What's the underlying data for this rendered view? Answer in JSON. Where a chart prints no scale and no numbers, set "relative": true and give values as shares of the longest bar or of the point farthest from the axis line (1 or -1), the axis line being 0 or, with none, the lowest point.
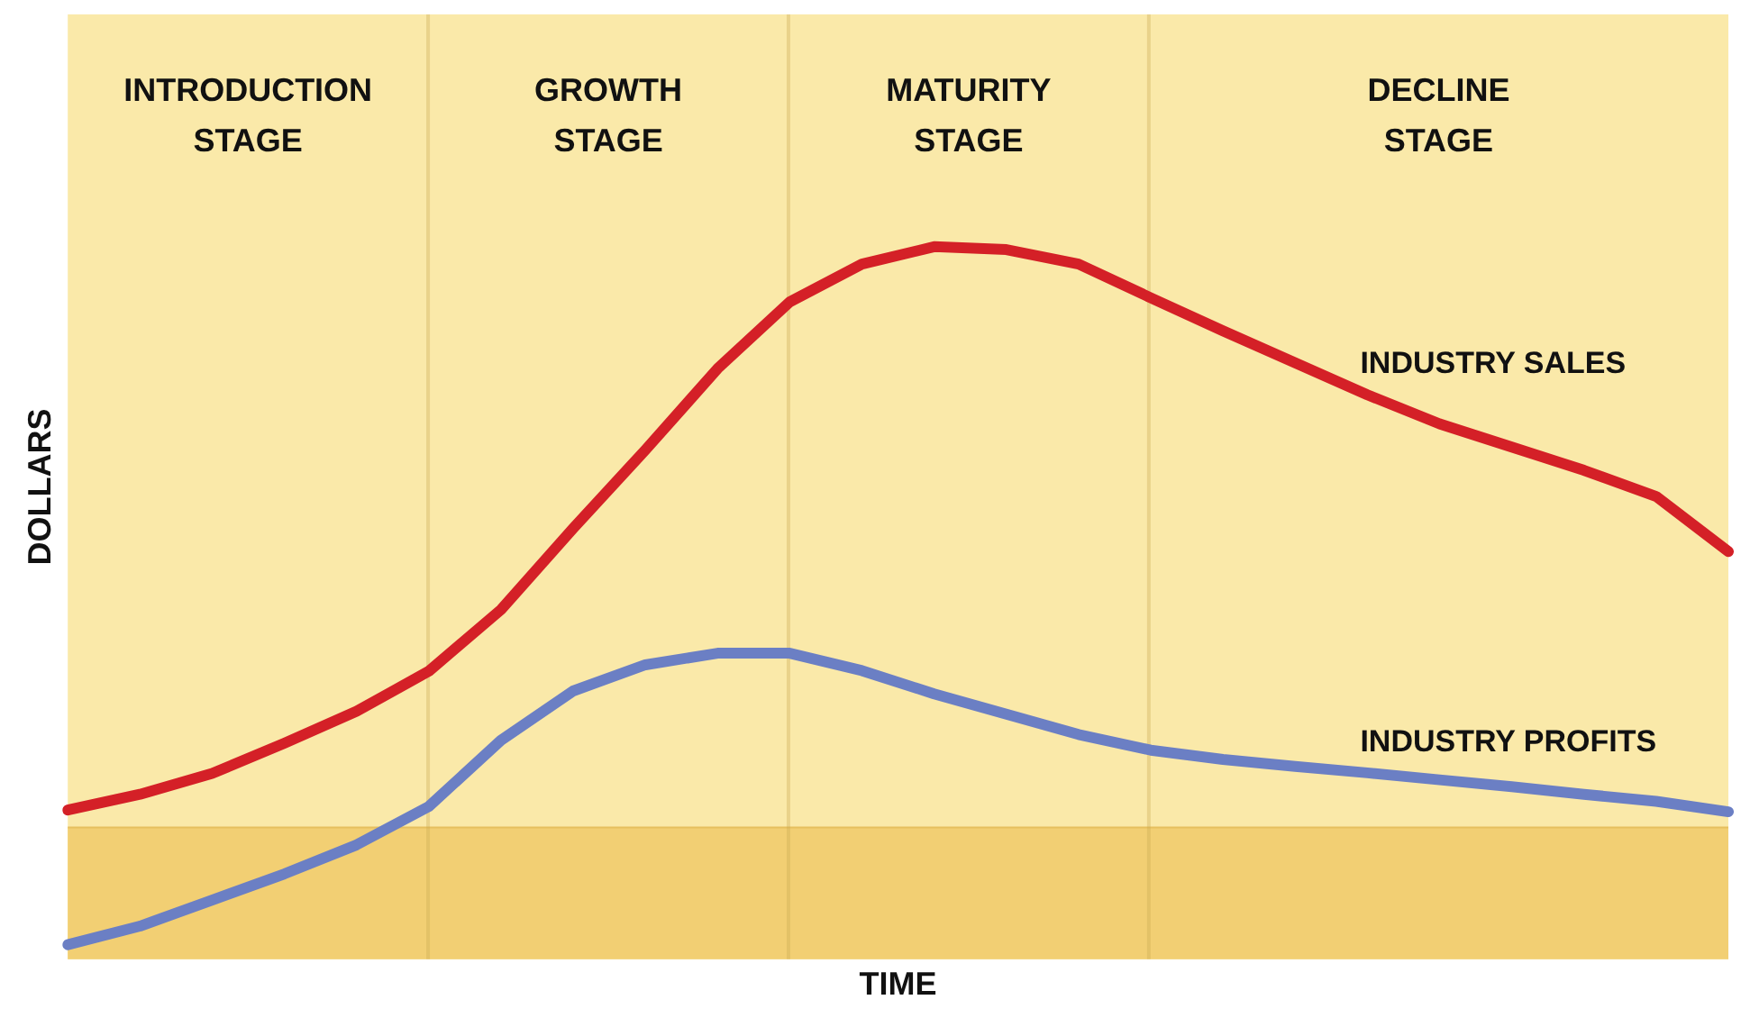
{
  "chart_data": {
    "type": "line",
    "relative": true,
    "xlabel": "TIME",
    "ylabel": "DOLLARS",
    "grid": false,
    "legend": false,
    "marker": "none",
    "line_style": "solid",
    "categories": [
      null,
      null,
      null,
      null,
      null,
      null,
      null,
      null,
      null,
      null,
      null,
      null,
      null,
      null,
      null,
      null,
      null,
      null,
      null,
      null,
      null,
      null,
      null,
      null
    ],
    "series": [
      {
        "name": "INDUSTRY SALES",
        "color": "#d42027",
        "values": [
          0.03,
          0.057,
          0.093,
          0.145,
          0.2,
          0.269,
          0.375,
          0.515,
          0.65,
          0.79,
          0.905,
          0.97,
          1.0,
          0.995,
          0.97,
          0.912,
          0.855,
          0.8,
          0.745,
          0.695,
          0.655,
          0.615,
          0.57,
          0.475
        ]
      },
      {
        "name": "INDUSTRY PROFITS",
        "color": "#6b7fc4",
        "values": [
          -0.202,
          -0.17,
          -0.125,
          -0.08,
          -0.03,
          0.036,
          0.15,
          0.235,
          0.28,
          0.3,
          0.3,
          0.27,
          0.23,
          0.195,
          0.16,
          0.133,
          0.117,
          0.105,
          0.094,
          0.082,
          0.07,
          0.057,
          0.045,
          0.027
        ]
      }
    ],
    "annotations": [
      "INTRODUCTION STAGE",
      "GROWTH STAGE",
      "MATURITY STAGE",
      "DECLINE STAGE"
    ],
    "bands": [
      {
        "axis": "y",
        "from": -0.227,
        "to": 0,
        "color": "#f2cf73"
      }
    ],
    "ref_lines": [
      {
        "axis": "y",
        "value": 0,
        "color": "#e6bf5e"
      }
    ]
  }
}
